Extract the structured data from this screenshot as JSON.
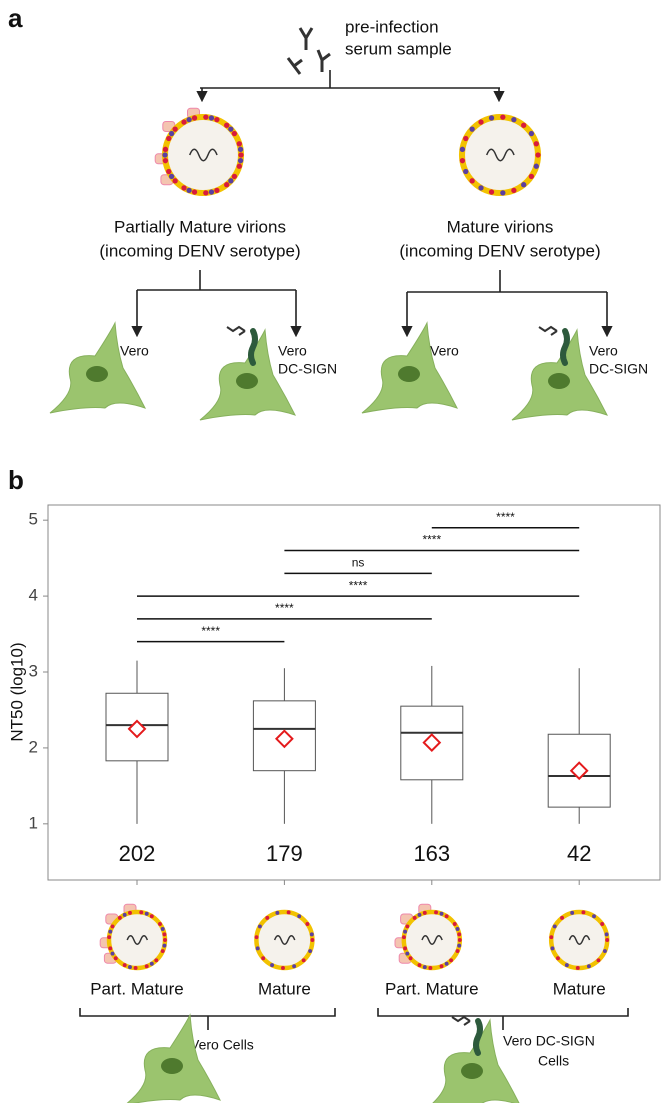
{
  "panel_a": {
    "label": "a",
    "serum": [
      "pre-infection",
      "serum sample"
    ],
    "virions": [
      {
        "title": "Partially Mature virions",
        "subtitle": "(incoming DENV serotype)",
        "cells": [
          [
            "Vero"
          ],
          [
            "Vero",
            "DC-SIGN"
          ]
        ]
      },
      {
        "title": "Mature virions",
        "subtitle": "(incoming DENV serotype)",
        "cells": [
          [
            "Vero"
          ],
          [
            "Vero",
            "DC-SIGN"
          ]
        ]
      }
    ]
  },
  "chart_data": {
    "type": "box",
    "panel_label": "b",
    "y_label": "NT50 (log10)",
    "categories": [
      "Part. Mature",
      "Mature",
      "Part. Mature",
      "Mature"
    ],
    "counts": [
      202,
      179,
      163,
      42
    ],
    "whisker_low": [
      1.0,
      1.0,
      1.0,
      1.0
    ],
    "q1": [
      1.83,
      1.7,
      1.58,
      1.22
    ],
    "median": [
      2.3,
      2.25,
      2.2,
      1.63
    ],
    "q3": [
      2.72,
      2.62,
      2.55,
      2.18
    ],
    "whisker_high": [
      3.15,
      3.05,
      3.08,
      3.05
    ],
    "mean": [
      2.25,
      2.12,
      2.07,
      1.7
    ],
    "box_color": "#555555",
    "mean_color": "#e41a1c",
    "ylim": [
      0.26,
      5.2
    ],
    "yticks": [
      1,
      2,
      3,
      4,
      5
    ],
    "grid": false,
    "brackets": [
      {
        "label": "****",
        "y": 4.9,
        "from": 2,
        "to": 3
      },
      {
        "label": "****",
        "y": 4.6,
        "from": 1,
        "to": 3
      },
      {
        "label": "ns",
        "y": 4.3,
        "from": 1,
        "to": 2
      },
      {
        "label": "****",
        "y": 4.0,
        "from": 0,
        "to": 3
      },
      {
        "label": "****",
        "y": 3.7,
        "from": 0,
        "to": 2
      },
      {
        "label": "****",
        "y": 3.4,
        "from": 0,
        "to": 1
      }
    ],
    "groups": [
      [
        "Vero Cells"
      ],
      [
        "Vero DC-SIGN",
        "Cells"
      ]
    ]
  }
}
